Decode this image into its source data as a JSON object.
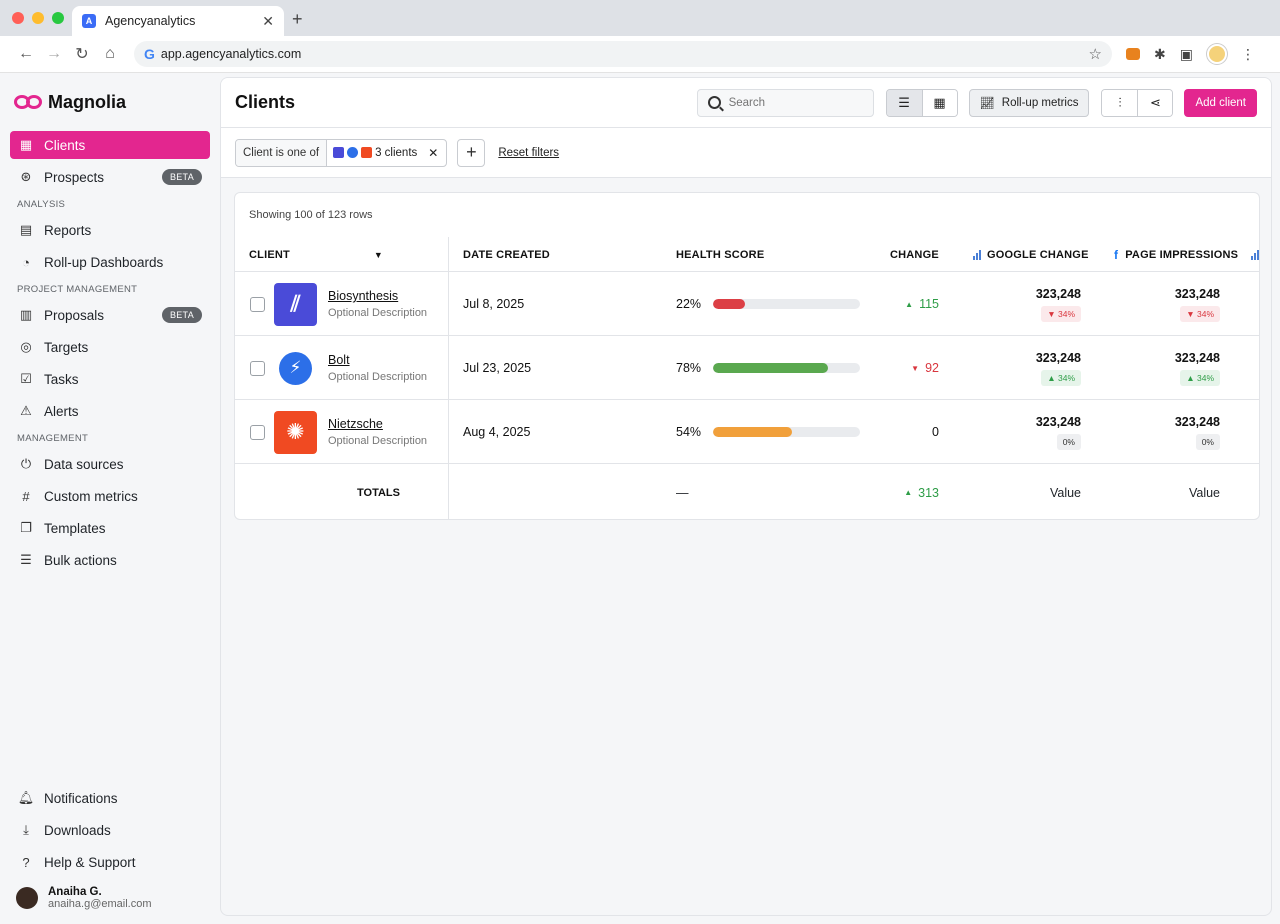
{
  "browser": {
    "tab_title": "Agencyanalytics",
    "url": "app.agencyanalytics.com"
  },
  "brand": {
    "name": "Magnolia",
    "color": "#e3268f"
  },
  "sidebar": {
    "items": [
      {
        "label": "Clients",
        "icon": "clients-icon",
        "active": true
      },
      {
        "label": "Prospects",
        "icon": "prospects-icon",
        "badge": "BETA"
      }
    ],
    "analysis_label": "ANALYSIS",
    "analysis": [
      {
        "label": "Reports",
        "icon": "reports-icon"
      },
      {
        "label": "Roll-up Dashboards",
        "icon": "pie-chart-icon"
      }
    ],
    "project_label": "PROJECT MANAGEMENT",
    "project": [
      {
        "label": "Proposals",
        "icon": "proposals-icon",
        "badge": "BETA"
      },
      {
        "label": "Targets",
        "icon": "target-icon"
      },
      {
        "label": "Tasks",
        "icon": "checkbox-icon"
      },
      {
        "label": "Alerts",
        "icon": "alert-icon"
      }
    ],
    "management_label": "MANAGEMENT",
    "management": [
      {
        "label": "Data sources",
        "icon": "plug-icon"
      },
      {
        "label": "Custom metrics",
        "icon": "hash-icon"
      },
      {
        "label": "Templates",
        "icon": "templates-icon"
      },
      {
        "label": "Bulk actions",
        "icon": "list-check-icon"
      }
    ],
    "bottom": [
      {
        "label": "Notifications",
        "icon": "bell-icon"
      },
      {
        "label": "Downloads",
        "icon": "download-icon"
      },
      {
        "label": "Help & Support",
        "icon": "help-icon"
      }
    ],
    "user": {
      "name": "Anaiha G.",
      "email": "anaiha.g@email.com"
    }
  },
  "header": {
    "title": "Clients",
    "search_placeholder": "Search",
    "rollup_label": "Roll-up metrics",
    "add_client_label": "Add client"
  },
  "filters": {
    "key": "Client is one of",
    "value": "3 clients",
    "reset_label": "Reset filters"
  },
  "table": {
    "showing": "Showing 100 of 123 rows",
    "columns": {
      "client": "CLIENT",
      "date": "DATE CREATED",
      "health": "HEALTH SCORE",
      "change": "CHANGE",
      "google": "GOOGLE CHANGE",
      "page": "PAGE IMPRESSIONS"
    },
    "rows": [
      {
        "name": "Biosynthesis",
        "desc": "Optional Description",
        "date": "Jul 8, 2025",
        "health_pct": "22%",
        "health": 22,
        "health_color": "#dc3f45",
        "change": "115",
        "change_dir": "up",
        "google_val": "323,248",
        "google_pct": "34%",
        "google_dir": "down",
        "page_val": "323,248",
        "page_pct": "34%",
        "page_dir": "down",
        "logo_color": "#4a4bd8"
      },
      {
        "name": "Bolt",
        "desc": "Optional Description",
        "date": "Jul 23, 2025",
        "health_pct": "78%",
        "health": 78,
        "health_color": "#5aa84f",
        "change": "92",
        "change_dir": "down",
        "google_val": "323,248",
        "google_pct": "34%",
        "google_dir": "up",
        "page_val": "323,248",
        "page_pct": "34%",
        "page_dir": "up",
        "logo_color": "#2c6fe8"
      },
      {
        "name": "Nietzsche",
        "desc": "Optional Description",
        "date": "Aug 4, 2025",
        "health_pct": "54%",
        "health": 54,
        "health_color": "#f1a03b",
        "change": "0",
        "change_dir": "flat",
        "google_val": "323,248",
        "google_pct": "0%",
        "google_dir": "flat",
        "page_val": "323,248",
        "page_pct": "0%",
        "page_dir": "flat",
        "logo_color": "#f04a22"
      }
    ],
    "totals": {
      "label": "TOTALS",
      "health": "—",
      "change": "313",
      "google": "Value",
      "page": "Value"
    }
  }
}
